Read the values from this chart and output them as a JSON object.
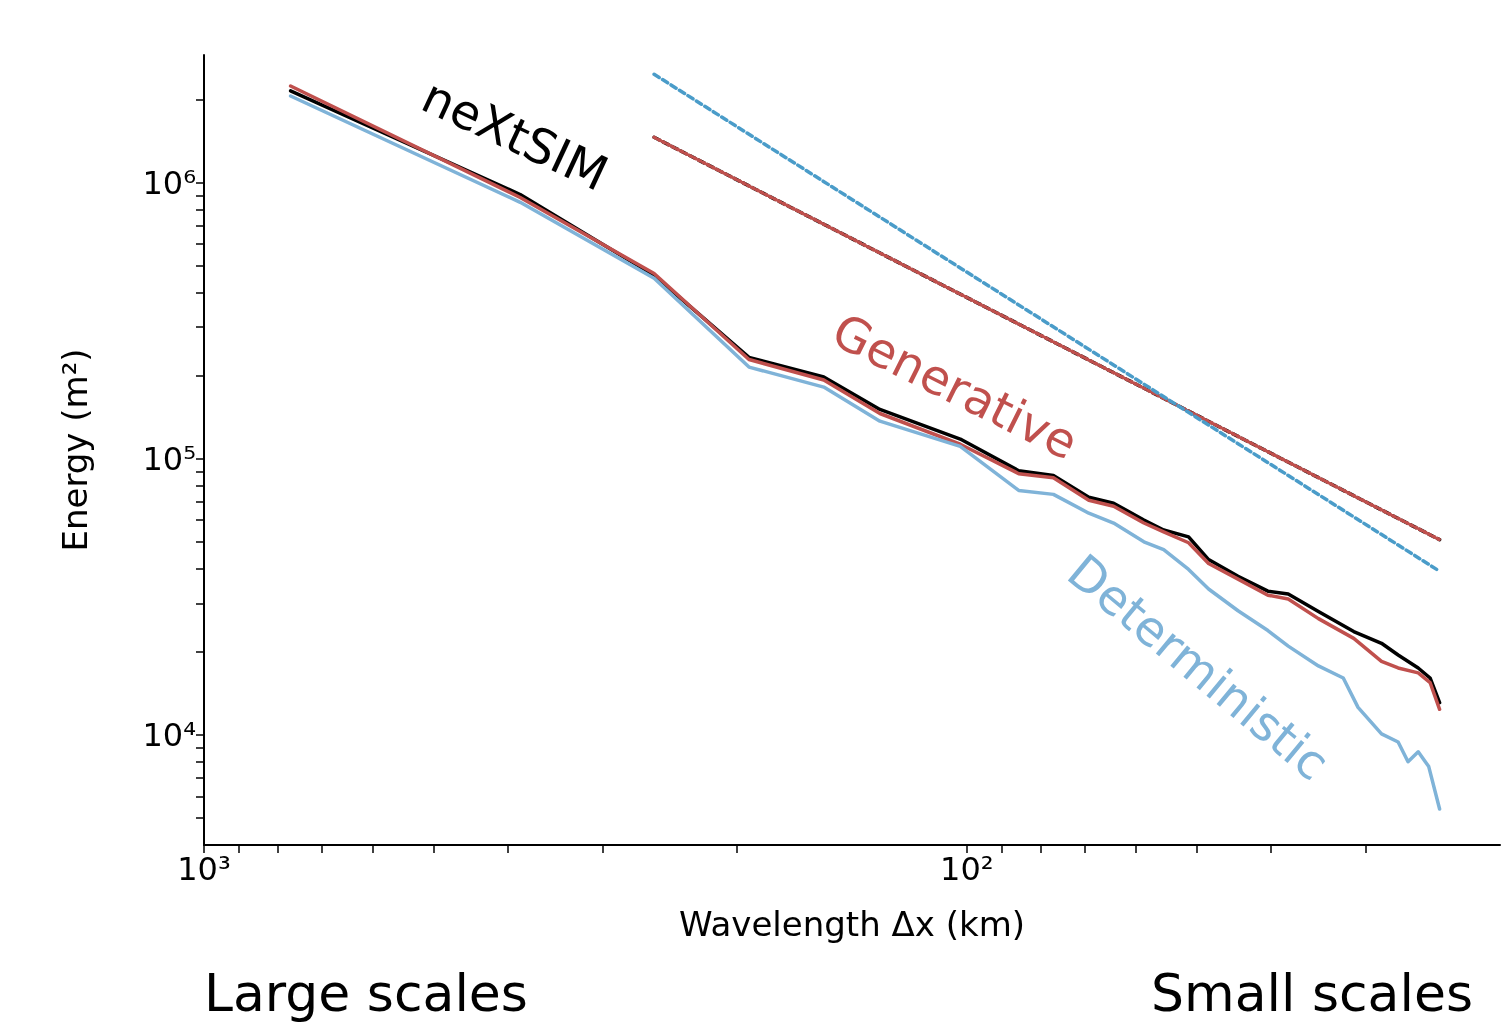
{
  "chart_data": {
    "type": "line",
    "xlabel": "Wavelength Δx (km)",
    "ylabel": "Energy (m²)",
    "log": "xy",
    "legend": false,
    "grid": false,
    "marker": "none",
    "xlim": [
      1000,
      20
    ],
    "ylim": [
      4000,
      2900000
    ],
    "xticks": [
      {
        "value": 1000,
        "label": "10³"
      },
      {
        "value": 900,
        "label": null
      },
      {
        "value": 800,
        "label": null
      },
      {
        "value": 700,
        "label": null
      },
      {
        "value": 600,
        "label": null
      },
      {
        "value": 500,
        "label": null
      },
      {
        "value": 400,
        "label": null
      },
      {
        "value": 300,
        "label": null
      },
      {
        "value": 200,
        "label": null
      },
      {
        "value": 100,
        "label": "10²"
      },
      {
        "value": 90,
        "label": null
      },
      {
        "value": 80,
        "label": null
      },
      {
        "value": 70,
        "label": null
      },
      {
        "value": 60,
        "label": null
      },
      {
        "value": 50,
        "label": null
      },
      {
        "value": 40,
        "label": null
      },
      {
        "value": 30,
        "label": null
      }
    ],
    "yticks": [
      {
        "value": 5000,
        "label": null
      },
      {
        "value": 6000,
        "label": null
      },
      {
        "value": 7000,
        "label": null
      },
      {
        "value": 8000,
        "label": null
      },
      {
        "value": 9000,
        "label": null
      },
      {
        "value": 10000,
        "label": "10⁴"
      },
      {
        "value": 20000,
        "label": null
      },
      {
        "value": 30000,
        "label": null
      },
      {
        "value": 40000,
        "label": null
      },
      {
        "value": 50000,
        "label": null
      },
      {
        "value": 60000,
        "label": null
      },
      {
        "value": 70000,
        "label": null
      },
      {
        "value": 80000,
        "label": null
      },
      {
        "value": 90000,
        "label": null
      },
      {
        "value": 100000,
        "label": "10⁵"
      },
      {
        "value": 200000,
        "label": null
      },
      {
        "value": 300000,
        "label": null
      },
      {
        "value": 400000,
        "label": null
      },
      {
        "value": 500000,
        "label": null
      },
      {
        "value": 600000,
        "label": null
      },
      {
        "value": 700000,
        "label": null
      },
      {
        "value": 800000,
        "label": null
      },
      {
        "value": 900000,
        "label": null
      },
      {
        "value": 1000000,
        "label": "10⁶"
      },
      {
        "value": 2000000,
        "label": null
      }
    ],
    "x": [
      770,
      385,
      257,
      193,
      154,
      130,
      102,
      85.5,
      77,
      69.2,
      64.2,
      58.6,
      55.2,
      51.2,
      48.2,
      44.1,
      40.3,
      37.9,
      34.6,
      31.1,
      28.6,
      27.2,
      25.6,
      24.7,
      24.0
    ],
    "series": [
      {
        "name": "neXtSIM",
        "color": "#000000",
        "line_style": "solid",
        "values": [
          2150000,
          906000,
          462000,
          233000,
          198000,
          151000,
          118000,
          90600,
          87000,
          72600,
          69100,
          60100,
          55300,
          52200,
          43200,
          37600,
          33200,
          32400,
          28000,
          23700,
          21500,
          19500,
          17500,
          16100,
          13100
        ]
      },
      {
        "name": "Generative",
        "color": "#c0504d",
        "line_style": "solid",
        "values": [
          2240000,
          884000,
          469000,
          229000,
          193000,
          146000,
          113000,
          88400,
          85500,
          70800,
          67400,
          58600,
          54400,
          49700,
          41800,
          36700,
          32100,
          31100,
          26400,
          22400,
          18500,
          17500,
          16800,
          15500,
          12400
        ]
      },
      {
        "name": "Deterministic",
        "color": "#7fb3d8",
        "line_style": "solid",
        "x": [
          770,
          385,
          257,
          193,
          154,
          130,
          102,
          85.5,
          77,
          69.2,
          64.2,
          58.6,
          55.2,
          51.2,
          48.2,
          44.1,
          40.3,
          37.9,
          34.6,
          32.1,
          30.7,
          28.6,
          27.2,
          26.4,
          25.6,
          24.8,
          24.0
        ],
        "values": [
          2060000,
          849000,
          451000,
          215000,
          182000,
          137000,
          111000,
          76900,
          74400,
          63600,
          58600,
          50100,
          46900,
          39800,
          33800,
          28200,
          23900,
          21000,
          17800,
          16100,
          12600,
          10100,
          9440,
          8010,
          8700,
          7690,
          5400
        ]
      },
      {
        "color": "#000000",
        "line_style": "dashed",
        "x": [
          257,
          24.0
        ],
        "values": [
          1460000,
          51000
        ]
      },
      {
        "color": "#c0504d",
        "line_style": "dotted",
        "x": [
          257,
          24.0
        ],
        "values": [
          1460000,
          51000
        ]
      },
      {
        "color": "#4a9cc9",
        "line_style": "dashed",
        "x": [
          257,
          24.0
        ],
        "values": [
          2470000,
          39200
        ]
      }
    ],
    "annotations": [
      "Large scales",
      "Small scales"
    ]
  }
}
